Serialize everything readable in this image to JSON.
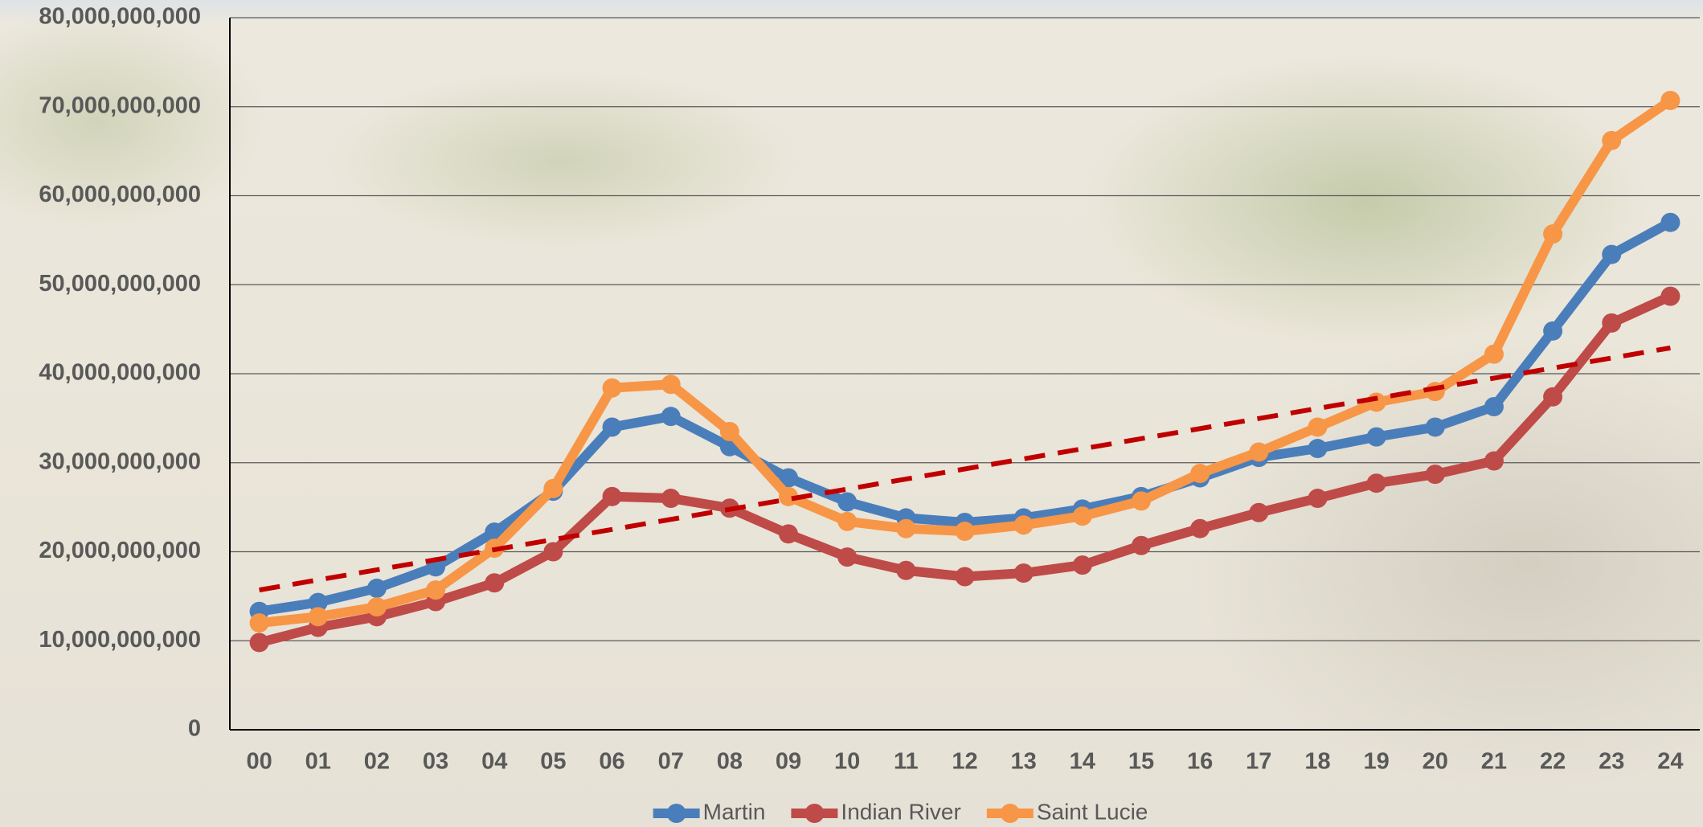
{
  "chart_data": {
    "type": "line",
    "categories": [
      "00",
      "01",
      "02",
      "03",
      "04",
      "05",
      "06",
      "07",
      "08",
      "09",
      "10",
      "11",
      "12",
      "13",
      "14",
      "15",
      "16",
      "17",
      "18",
      "19",
      "20",
      "21",
      "22",
      "23",
      "24"
    ],
    "series": [
      {
        "name": "Martin",
        "color": "#4a7ebb",
        "values": [
          13300000000,
          14300000000,
          15900000000,
          18300000000,
          22200000000,
          26800000000,
          34000000000,
          35200000000,
          31800000000,
          28300000000,
          25600000000,
          23800000000,
          23300000000,
          23800000000,
          24800000000,
          26200000000,
          28300000000,
          30600000000,
          31600000000,
          32900000000,
          34000000000,
          36300000000,
          44800000000,
          53400000000,
          57000000000
        ]
      },
      {
        "name": "Indian River",
        "color": "#be4b48",
        "values": [
          9800000000,
          11500000000,
          12700000000,
          14400000000,
          16500000000,
          20000000000,
          26200000000,
          26000000000,
          24900000000,
          22000000000,
          19400000000,
          17900000000,
          17200000000,
          17600000000,
          18500000000,
          20700000000,
          22600000000,
          24400000000,
          26000000000,
          27700000000,
          28700000000,
          30200000000,
          37400000000,
          45700000000,
          48700000000
        ]
      },
      {
        "name": "Saint Lucie",
        "color": "#f79646",
        "values": [
          12000000000,
          12700000000,
          13800000000,
          15700000000,
          20400000000,
          27100000000,
          38400000000,
          38800000000,
          33500000000,
          26200000000,
          23400000000,
          22600000000,
          22300000000,
          23000000000,
          24000000000,
          25700000000,
          28800000000,
          31200000000,
          34000000000,
          36800000000,
          38000000000,
          42200000000,
          55700000000,
          66200000000,
          70700000000
        ]
      }
    ],
    "trendline": {
      "color": "#c00000",
      "values": [
        15700000000,
        42900000000
      ]
    },
    "ylim": [
      0,
      80000000000
    ],
    "yticks": [
      0,
      {
        "value": 10000000000,
        "label": "10,000,000,000"
      },
      {
        "value": 20000000000,
        "label": "20,000,000,000"
      },
      {
        "value": 30000000000,
        "label": "30,000,000,000"
      },
      {
        "value": 40000000000,
        "label": "40,000,000,000"
      },
      {
        "value": 50000000000,
        "label": "50,000,000,000"
      },
      {
        "value": 60000000000,
        "label": "60,000,000,000"
      },
      {
        "value": 70000000000,
        "label": "70,000,000,000"
      },
      {
        "value": 80000000000,
        "label": "80,000,000,000"
      }
    ],
    "grid": true,
    "legend": "bottom"
  }
}
